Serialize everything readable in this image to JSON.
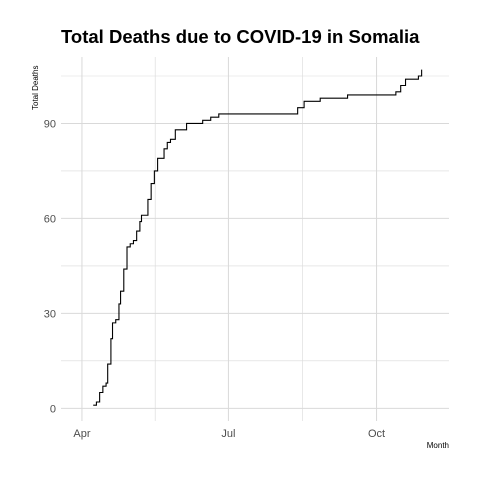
{
  "chart_data": {
    "type": "line",
    "title": "Total Deaths due to COVID-19 in Somalia",
    "xlabel": "Month",
    "ylabel": "Total Deaths",
    "x_ticks": [
      {
        "label": "Apr",
        "date": "2020-04-01"
      },
      {
        "label": "Jul",
        "date": "2020-07-01"
      },
      {
        "label": "Oct",
        "date": "2020-10-01"
      }
    ],
    "y_ticks": [
      0,
      30,
      60,
      90
    ],
    "xlim": [
      "2020-03-19",
      "2020-11-15"
    ],
    "ylim": [
      -4,
      111
    ],
    "grid": true,
    "line_color": "#000000",
    "grid_color": "#d9d9d9",
    "series": [
      {
        "points": [
          {
            "x": "2020-04-08",
            "y": 1
          },
          {
            "x": "2020-04-10",
            "y": 2
          },
          {
            "x": "2020-04-12",
            "y": 5
          },
          {
            "x": "2020-04-14",
            "y": 7
          },
          {
            "x": "2020-04-16",
            "y": 8
          },
          {
            "x": "2020-04-17",
            "y": 14
          },
          {
            "x": "2020-04-19",
            "y": 22
          },
          {
            "x": "2020-04-20",
            "y": 27
          },
          {
            "x": "2020-04-22",
            "y": 28
          },
          {
            "x": "2020-04-24",
            "y": 33
          },
          {
            "x": "2020-04-25",
            "y": 37
          },
          {
            "x": "2020-04-27",
            "y": 44
          },
          {
            "x": "2020-04-29",
            "y": 51
          },
          {
            "x": "2020-05-01",
            "y": 52
          },
          {
            "x": "2020-05-03",
            "y": 53
          },
          {
            "x": "2020-05-05",
            "y": 56
          },
          {
            "x": "2020-05-07",
            "y": 59
          },
          {
            "x": "2020-05-08",
            "y": 61
          },
          {
            "x": "2020-05-12",
            "y": 66
          },
          {
            "x": "2020-05-14",
            "y": 71
          },
          {
            "x": "2020-05-16",
            "y": 75
          },
          {
            "x": "2020-05-18",
            "y": 79
          },
          {
            "x": "2020-05-22",
            "y": 82
          },
          {
            "x": "2020-05-24",
            "y": 84
          },
          {
            "x": "2020-05-26",
            "y": 85
          },
          {
            "x": "2020-05-29",
            "y": 88
          },
          {
            "x": "2020-06-05",
            "y": 90
          },
          {
            "x": "2020-06-15",
            "y": 91
          },
          {
            "x": "2020-06-20",
            "y": 92
          },
          {
            "x": "2020-06-25",
            "y": 93
          },
          {
            "x": "2020-08-13",
            "y": 95
          },
          {
            "x": "2020-08-17",
            "y": 97
          },
          {
            "x": "2020-08-27",
            "y": 98
          },
          {
            "x": "2020-09-13",
            "y": 99
          },
          {
            "x": "2020-10-13",
            "y": 100
          },
          {
            "x": "2020-10-16",
            "y": 102
          },
          {
            "x": "2020-10-19",
            "y": 104
          },
          {
            "x": "2020-10-27",
            "y": 105
          },
          {
            "x": "2020-10-29",
            "y": 107
          }
        ]
      }
    ]
  }
}
